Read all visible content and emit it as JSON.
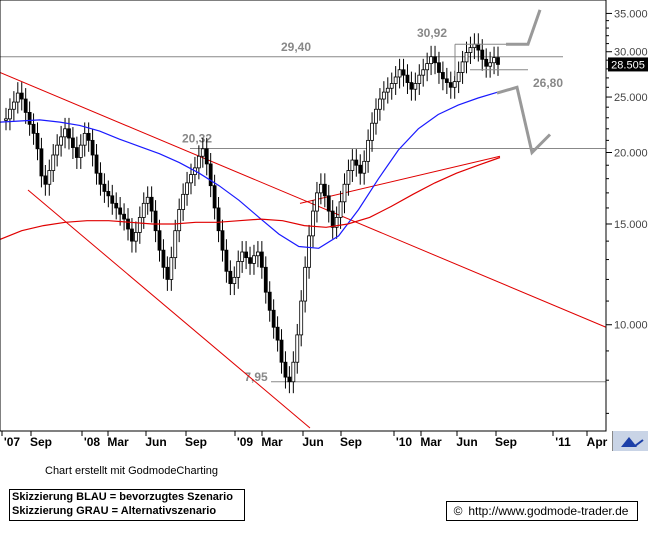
{
  "chart_data": {
    "type": "candlestick",
    "y_scale": "log",
    "ylim": [
      6.6,
      36.5
    ],
    "y_ticks": [
      {
        "label": "35.000",
        "value": 35
      },
      {
        "label": "30.000",
        "value": 30
      },
      {
        "label": "25.000",
        "value": 25
      },
      {
        "label": "20.000",
        "value": 20
      },
      {
        "label": "15.000",
        "value": 15
      },
      {
        "label": "10.000",
        "value": 10
      }
    ],
    "x_ticks": [
      "'07",
      "Sep",
      "'08",
      "Mar",
      "Jun",
      "Sep",
      "'09",
      "Mar",
      "Jun",
      "Sep",
      "'10",
      "Mar",
      "Jun",
      "Sep",
      "'11",
      "Apr"
    ],
    "last_price": "28.505",
    "price_levels": [
      {
        "label": "29,40",
        "value": 29.4
      },
      {
        "label": "30,92",
        "value": 30.92
      },
      {
        "label": "20,32",
        "value": 20.32
      },
      {
        "label": "26,80",
        "value": 26.8
      },
      {
        "label": "7,95",
        "value": 7.95
      }
    ],
    "series": [
      {
        "name": "price",
        "color": "#000000",
        "values": [
          22.9,
          23.8,
          24.5,
          25.4,
          24.8,
          23.5,
          22.4,
          21.6,
          20.3,
          18.2,
          17.6,
          18.6,
          19.8,
          20.6,
          21.3,
          22.0,
          21.2,
          20.4,
          19.6,
          20.6,
          21.6,
          21.0,
          19.8,
          18.4,
          17.6,
          17.1,
          16.8,
          16.3,
          16.0,
          15.6,
          15.3,
          14.7,
          14.0,
          14.5,
          15.4,
          16.3,
          16.7,
          15.8,
          14.6,
          13.5,
          12.6,
          12.0,
          13.1,
          14.6,
          15.9,
          16.9,
          17.7,
          18.3,
          18.8,
          19.7,
          20.3,
          19.1,
          17.5,
          16.0,
          14.6,
          13.5,
          12.4,
          11.8,
          12.1,
          12.9,
          13.4,
          13.1,
          12.8,
          13.2,
          13.4,
          12.6,
          11.4,
          10.6,
          9.9,
          9.4,
          8.6,
          8.1,
          7.95,
          8.6,
          9.6,
          11.0,
          12.6,
          14.3,
          15.8,
          17.0,
          17.6,
          16.8,
          15.8,
          14.8,
          15.4,
          16.4,
          17.6,
          18.6,
          19.4,
          19.0,
          18.4,
          19.3,
          21.0,
          22.5,
          23.8,
          24.8,
          25.5,
          25.9,
          26.4,
          27.1,
          27.9,
          27.3,
          26.5,
          25.8,
          26.4,
          27.3,
          27.9,
          28.6,
          29.4,
          28.7,
          27.6,
          26.9,
          26.5,
          26.0,
          26.6,
          27.6,
          28.8,
          29.9,
          30.5,
          30.92,
          30.2,
          29.1,
          28.3,
          28.7,
          29.3,
          28.505
        ]
      },
      {
        "name": "",
        "color": "#1a1aff",
        "values": [
          22.6,
          22.7,
          22.8,
          22.6,
          22.3,
          21.8,
          21.1,
          20.5,
          19.9,
          19.2,
          18.4,
          17.5,
          16.5,
          15.4,
          14.4,
          13.7,
          13.6,
          14.3,
          15.9,
          18.0,
          20.2,
          22.0,
          23.3,
          24.2,
          24.9,
          25.5
        ]
      },
      {
        "name": "",
        "color": "#e00000",
        "values": [
          14.1,
          14.6,
          14.9,
          15.1,
          15.2,
          15.2,
          15.1,
          15.0,
          15.0,
          15.1,
          15.1,
          15.2,
          15.3,
          15.2,
          14.9,
          14.8,
          15.0,
          15.4,
          16.1,
          16.9,
          17.7,
          18.4,
          19.0,
          19.6
        ]
      }
    ],
    "trendlines": [
      {
        "name": "",
        "color": "#e00000"
      },
      {
        "name": "",
        "color": "#e00000"
      },
      {
        "name": "",
        "color": "#e00000"
      }
    ],
    "scenarios": [
      {
        "name": "",
        "color": "#999999",
        "values": [
          30.92,
          30.92,
          35.5
        ]
      },
      {
        "name": "",
        "color": "#999999",
        "values": [
          25.4,
          26.0,
          20.0,
          21.5
        ]
      }
    ],
    "grid": false
  },
  "footer": {
    "created_with": "Chart erstellt mit GodmodeCharting",
    "legend_blue": "Skizzierung BLAU = bevorzugtes Szenario",
    "legend_gray": "Skizzierung GRAU = Alternativszenario",
    "copyright_symbol": "©",
    "url": "http://www.godmode-trader.de",
    "corner_icon": "chart-arrow-icon"
  }
}
